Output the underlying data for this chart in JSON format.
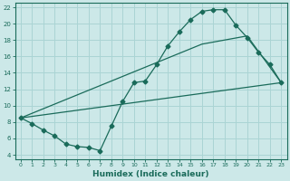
{
  "xlabel": "Humidex (Indice chaleur)",
  "bg_color": "#cce8e8",
  "grid_color": "#aad4d4",
  "line_color": "#1a6b5a",
  "xlim": [
    -0.5,
    23.5
  ],
  "ylim": [
    3.5,
    22.5
  ],
  "xticks": [
    0,
    1,
    2,
    3,
    4,
    5,
    6,
    7,
    8,
    9,
    10,
    11,
    12,
    13,
    14,
    15,
    16,
    17,
    18,
    19,
    20,
    21,
    22,
    23
  ],
  "yticks": [
    4,
    6,
    8,
    10,
    12,
    14,
    16,
    18,
    20,
    22
  ],
  "curve1_x": [
    0,
    1,
    2,
    3,
    4,
    5,
    6,
    7,
    8,
    9,
    10,
    11,
    12,
    13,
    14,
    15,
    16,
    17,
    18,
    19,
    20,
    21,
    22,
    23
  ],
  "curve1_y": [
    8.5,
    7.8,
    7.0,
    6.3,
    5.3,
    5.0,
    4.9,
    4.5,
    7.5,
    10.5,
    12.8,
    13.0,
    15.0,
    17.3,
    19.0,
    20.5,
    21.5,
    21.7,
    21.7,
    19.8,
    18.3,
    16.5,
    15.0,
    12.8
  ],
  "curve2_x": [
    0,
    23
  ],
  "curve2_y": [
    8.5,
    12.8
  ],
  "curve3_x": [
    0,
    16,
    20,
    23
  ],
  "curve3_y": [
    8.5,
    17.5,
    18.5,
    12.8
  ]
}
